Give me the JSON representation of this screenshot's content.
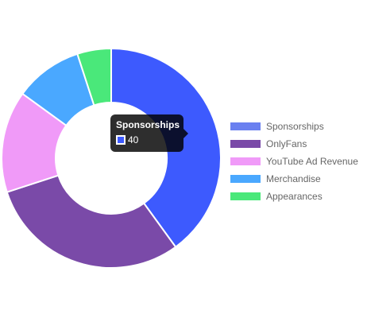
{
  "chart_data": {
    "type": "pie",
    "style": "doughnut",
    "categories": [
      "Sponsorships",
      "OnlyFans",
      "YouTube Ad Revenue",
      "Merchandise",
      "Appearances"
    ],
    "values": [
      40,
      30,
      15,
      10,
      5
    ],
    "colors": [
      "#3d5afe",
      "#7a4aa8",
      "#f09af8",
      "#4aa8ff",
      "#4ae87a"
    ],
    "legend_colors": [
      "#6a80f0",
      "#7a4aa8",
      "#f09af8",
      "#4aa8ff",
      "#4ae87a"
    ],
    "legend_position": "right",
    "tooltip": {
      "title": "Sponsorships",
      "value": "40",
      "color": "#3d5afe"
    }
  }
}
